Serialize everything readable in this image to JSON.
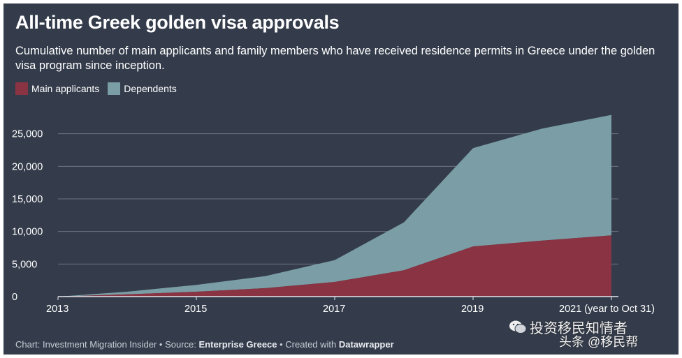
{
  "chart_data": {
    "type": "area",
    "stacked": true,
    "title": "All-time Greek golden visa approvals",
    "subtitle": "Cumulative number of main applicants and family members who have received residence permits in Greece under the golden visa program since inception.",
    "x": [
      2013,
      2014,
      2015,
      2016,
      2017,
      2018,
      2019,
      2020,
      2021
    ],
    "x_tick_labels": [
      "2013",
      "2015",
      "2017",
      "2019",
      "2021 (year to Oct 31)"
    ],
    "x_tick_values": [
      2013,
      2015,
      2017,
      2019,
      2021
    ],
    "y_ticks": [
      0,
      5000,
      10000,
      15000,
      20000,
      25000
    ],
    "y_tick_labels": [
      "0",
      "5,000",
      "10,000",
      "15,000",
      "20,000",
      "25,000"
    ],
    "ylim": [
      0,
      30000
    ],
    "series": [
      {
        "name": "Main applicants",
        "color": "#8a3443",
        "values": [
          0,
          350,
          750,
          1300,
          2250,
          4050,
          7700,
          8600,
          9400
        ]
      },
      {
        "name": "Dependents",
        "color": "#7b9ea6",
        "values": [
          0,
          400,
          1050,
          1850,
          3350,
          7350,
          15100,
          17200,
          18500
        ]
      }
    ],
    "grid": true,
    "legend_position": "top-left"
  },
  "footer": {
    "prefix": "Chart: Investment Migration Insider • Source: ",
    "source": "Enterprise Greece",
    "middle": " • Created with ",
    "tool": "Datawrapper"
  },
  "watermark": {
    "line1": "投资移民知情者",
    "line2": "头条 @移民帮"
  },
  "colors": {
    "background": "#343c4b",
    "gridline": "#6d7584",
    "axis": "#e6e8ec"
  }
}
